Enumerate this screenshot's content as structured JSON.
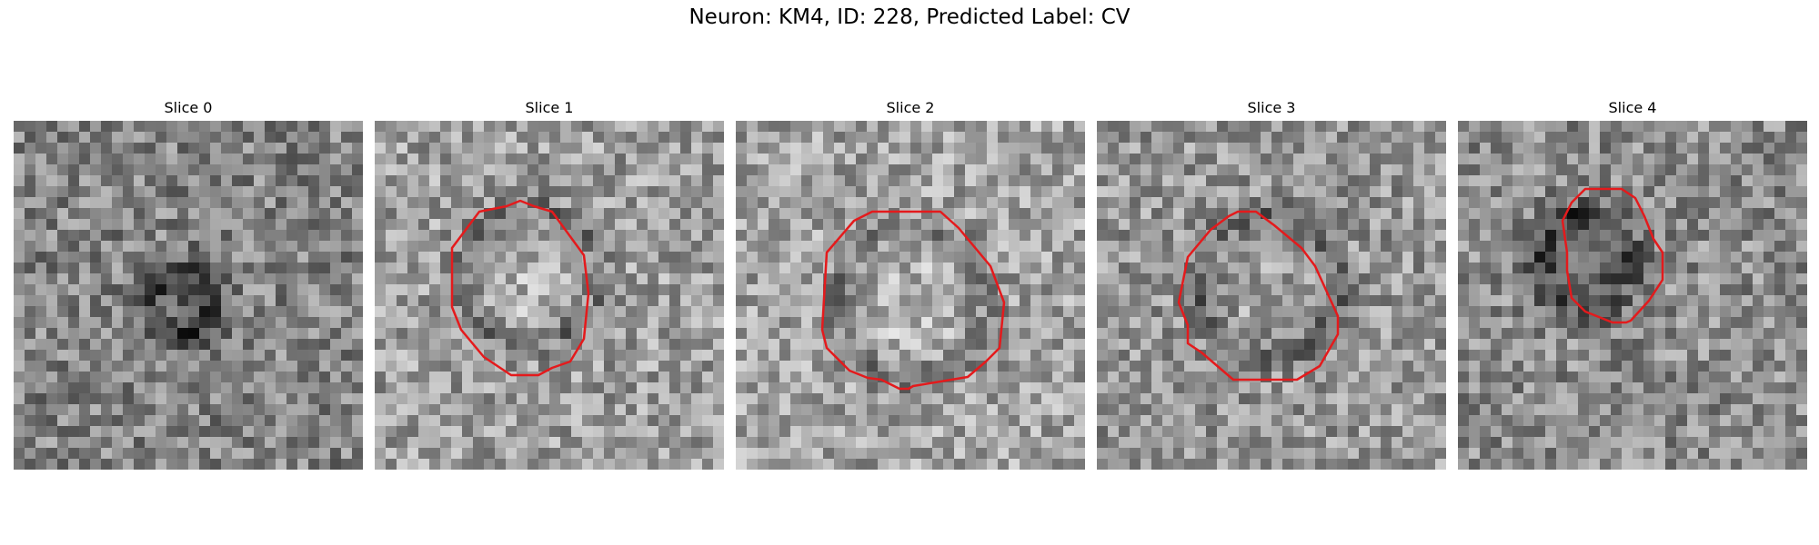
{
  "figure": {
    "title": "Neuron: KM4, ID: 228, Predicted Label: CV"
  },
  "contour_color": "#e41a1c",
  "panels": [
    {
      "title": "Slice 0",
      "has_contour": false
    },
    {
      "title": "Slice 1",
      "has_contour": true
    },
    {
      "title": "Slice 2",
      "has_contour": true
    },
    {
      "title": "Slice 3",
      "has_contour": true
    },
    {
      "title": "Slice 4",
      "has_contour": true
    }
  ]
}
